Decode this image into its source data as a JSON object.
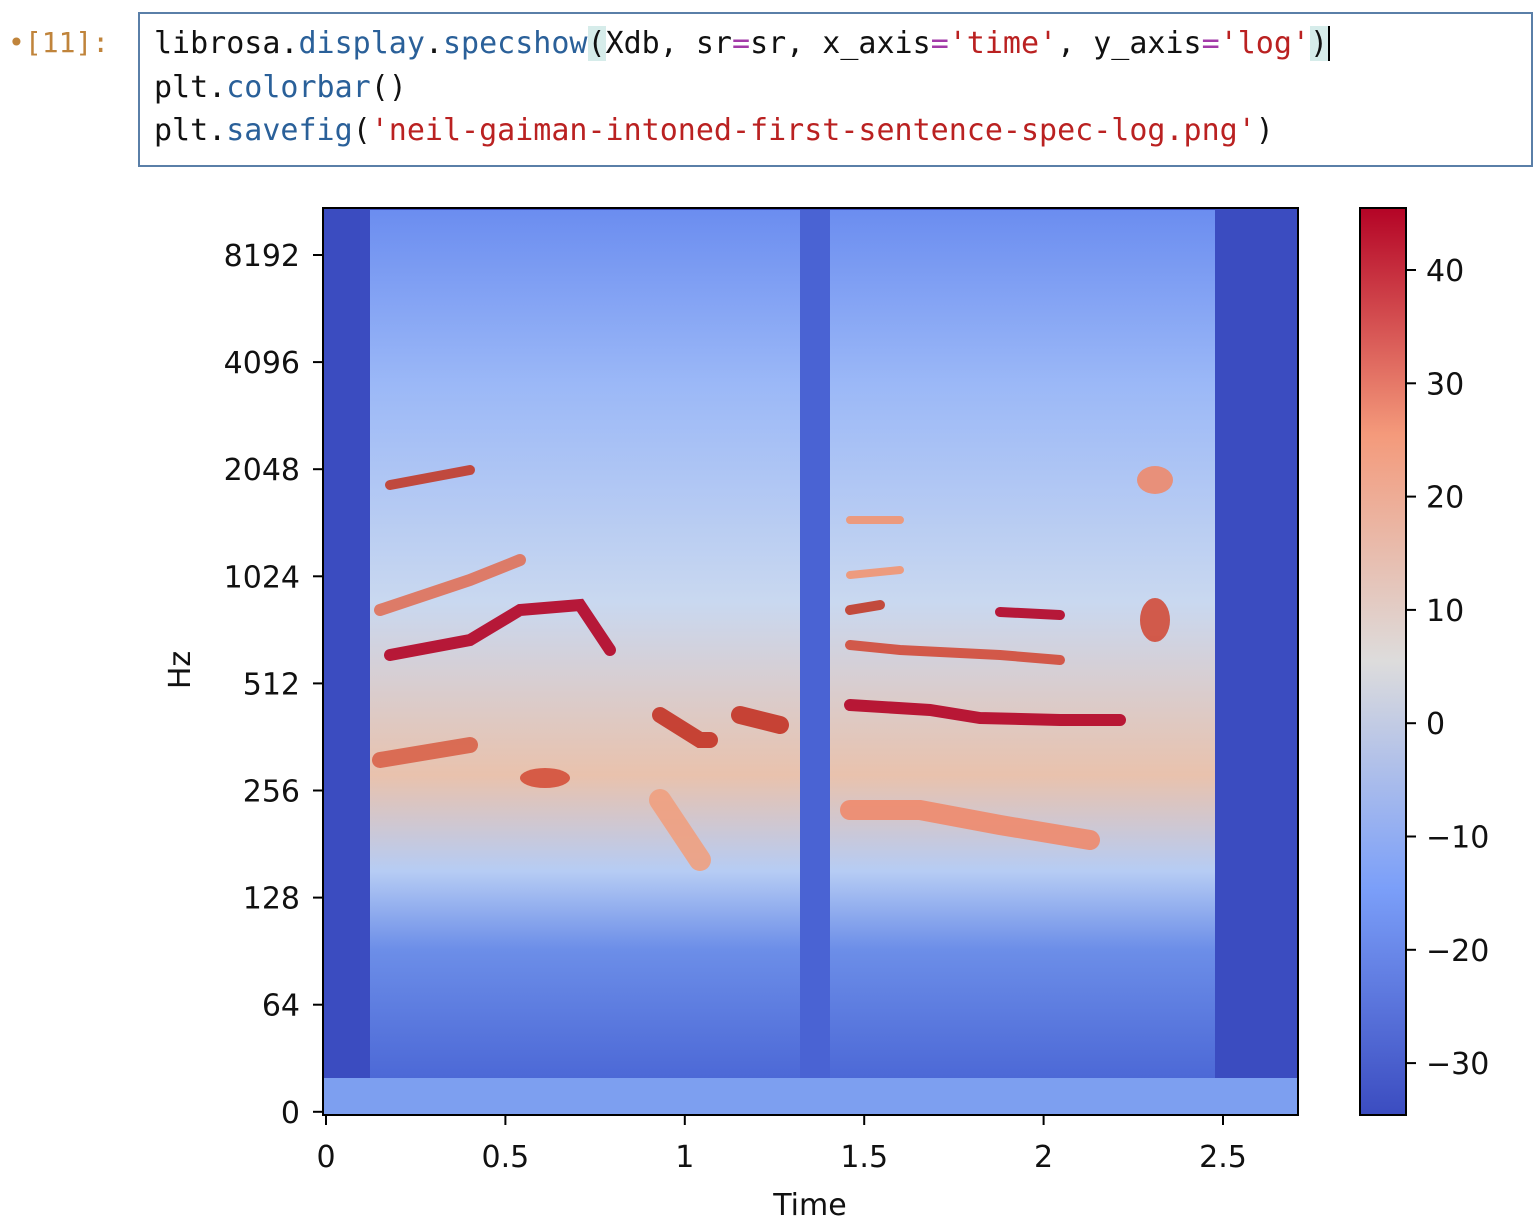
{
  "cell": {
    "prompt": "[11]:",
    "line1": [
      "librosa.",
      "display",
      ".",
      "specshow",
      "(",
      "Xdb, sr",
      "=",
      "sr, x_axis",
      "=",
      "'time'",
      ", y_axis",
      "=",
      "'log'",
      ")"
    ],
    "line2": [
      "plt.",
      "colorbar",
      "()"
    ],
    "line3": [
      "plt.",
      "savefig",
      "(",
      "'neil-gaiman-intoned-first-sentence-spec-log.png'",
      ")"
    ]
  },
  "figure": {
    "ylabel": "Hz",
    "xlabel": "Time",
    "yticks": [
      "8192",
      "4096",
      "2048",
      "1024",
      "512",
      "256",
      "128",
      "64",
      "0"
    ],
    "xticks": [
      "0",
      "0.5",
      "1",
      "1.5",
      "2",
      "2.5"
    ],
    "colorbar_ticks": [
      "40",
      "30",
      "20",
      "10",
      "0",
      "−10",
      "−20",
      "−30"
    ]
  }
}
